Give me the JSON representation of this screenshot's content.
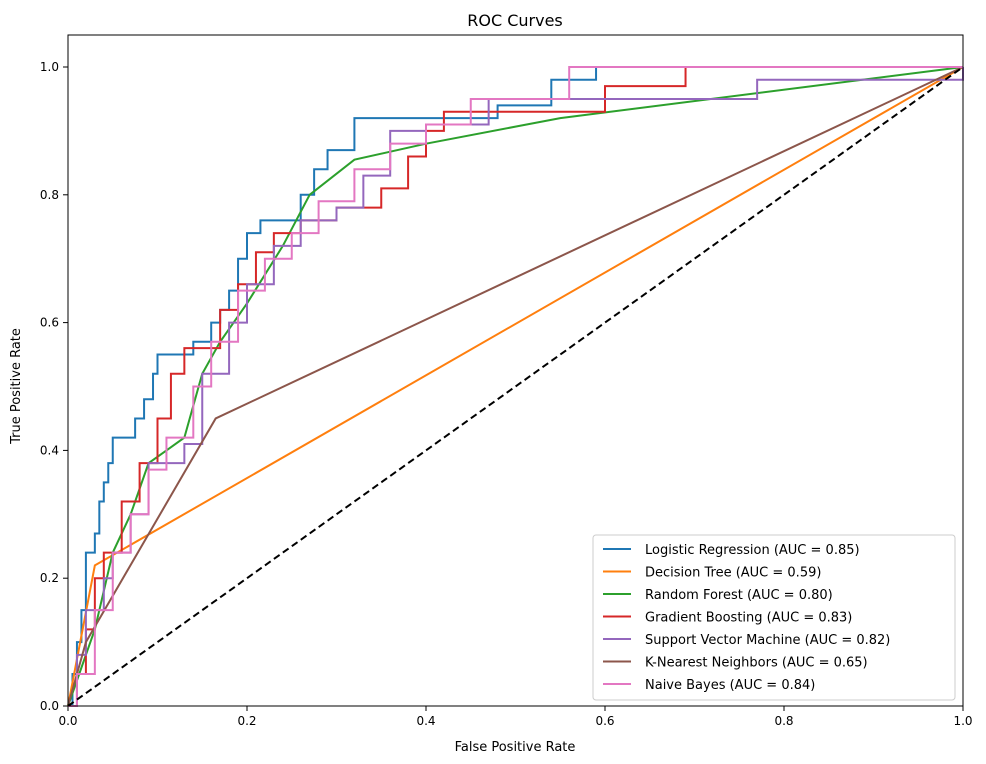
{
  "chart_data": {
    "type": "line",
    "title": "ROC Curves",
    "xlabel": "False Positive Rate",
    "ylabel": "True Positive Rate",
    "xlim": [
      0,
      1
    ],
    "ylim": [
      0,
      1.05
    ],
    "xticks": [
      "0.0",
      "0.2",
      "0.4",
      "0.6",
      "0.8",
      "1.0"
    ],
    "yticks": [
      "0.0",
      "0.2",
      "0.4",
      "0.6",
      "0.8",
      "1.0"
    ],
    "grid": false,
    "legend_position": "bottom-right",
    "series": [
      {
        "name": "Logistic Regression (AUC = 0.85)",
        "color": "#1f77b4",
        "step": true,
        "x": [
          0,
          0.005,
          0.01,
          0.015,
          0.02,
          0.03,
          0.035,
          0.04,
          0.045,
          0.05,
          0.07,
          0.075,
          0.085,
          0.095,
          0.1,
          0.135,
          0.14,
          0.16,
          0.17,
          0.18,
          0.19,
          0.2,
          0.215,
          0.25,
          0.26,
          0.275,
          0.29,
          0.32,
          0.42,
          0.48,
          0.54,
          0.59,
          1
        ],
        "y": [
          0,
          0.05,
          0.1,
          0.15,
          0.24,
          0.27,
          0.32,
          0.35,
          0.38,
          0.42,
          0.42,
          0.45,
          0.48,
          0.52,
          0.55,
          0.55,
          0.57,
          0.6,
          0.62,
          0.65,
          0.7,
          0.74,
          0.76,
          0.76,
          0.8,
          0.84,
          0.87,
          0.92,
          0.92,
          0.94,
          0.98,
          1.0,
          1.0
        ]
      },
      {
        "name": "Decision Tree (AUC = 0.59)",
        "color": "#ff7f0e",
        "step": false,
        "x": [
          0,
          0.03,
          1
        ],
        "y": [
          0,
          0.22,
          1
        ]
      },
      {
        "name": "Random Forest (AUC = 0.80)",
        "color": "#2ca02c",
        "step": false,
        "x": [
          0,
          0.03,
          0.05,
          0.07,
          0.09,
          0.11,
          0.13,
          0.15,
          0.17,
          0.2,
          0.24,
          0.27,
          0.32,
          0.4,
          0.55,
          1
        ],
        "y": [
          0,
          0.12,
          0.24,
          0.3,
          0.38,
          0.4,
          0.42,
          0.52,
          0.57,
          0.63,
          0.72,
          0.8,
          0.855,
          0.88,
          0.92,
          1
        ]
      },
      {
        "name": "Gradient Boosting (AUC = 0.83)",
        "color": "#d62728",
        "step": true,
        "x": [
          0,
          0.01,
          0.02,
          0.03,
          0.04,
          0.06,
          0.08,
          0.1,
          0.115,
          0.13,
          0.15,
          0.17,
          0.19,
          0.21,
          0.23,
          0.26,
          0.3,
          0.35,
          0.38,
          0.4,
          0.42,
          0.6,
          0.69,
          1
        ],
        "y": [
          0,
          0.05,
          0.12,
          0.2,
          0.24,
          0.32,
          0.38,
          0.45,
          0.52,
          0.56,
          0.56,
          0.62,
          0.66,
          0.71,
          0.74,
          0.76,
          0.78,
          0.81,
          0.86,
          0.9,
          0.93,
          0.97,
          1.0,
          1.0
        ]
      },
      {
        "name": "Support Vector Machine (AUC = 0.82)",
        "color": "#9467bd",
        "step": true,
        "x": [
          0,
          0.01,
          0.02,
          0.04,
          0.05,
          0.07,
          0.09,
          0.13,
          0.15,
          0.18,
          0.2,
          0.23,
          0.26,
          0.3,
          0.33,
          0.36,
          0.4,
          0.47,
          0.6,
          0.77,
          0.94,
          1
        ],
        "y": [
          0,
          0.08,
          0.15,
          0.2,
          0.24,
          0.3,
          0.38,
          0.41,
          0.52,
          0.6,
          0.66,
          0.72,
          0.76,
          0.78,
          0.83,
          0.9,
          0.91,
          0.95,
          0.95,
          0.98,
          0.98,
          1
        ]
      },
      {
        "name": "K-Nearest Neighbors (AUC = 0.65)",
        "color": "#8c564b",
        "step": false,
        "x": [
          0,
          0.02,
          0.165,
          1
        ],
        "y": [
          0,
          0.1,
          0.45,
          1
        ]
      },
      {
        "name": "Naive Bayes (AUC = 0.84)",
        "color": "#e377c2",
        "step": true,
        "x": [
          0,
          0.01,
          0.03,
          0.05,
          0.07,
          0.09,
          0.11,
          0.14,
          0.16,
          0.19,
          0.22,
          0.25,
          0.28,
          0.32,
          0.36,
          0.4,
          0.45,
          0.56,
          1
        ],
        "y": [
          0,
          0.05,
          0.15,
          0.24,
          0.3,
          0.37,
          0.42,
          0.5,
          0.57,
          0.65,
          0.7,
          0.74,
          0.79,
          0.84,
          0.88,
          0.91,
          0.95,
          1.0,
          1.0
        ]
      }
    ],
    "reference_line": {
      "x": [
        0,
        1
      ],
      "y": [
        0,
        1
      ],
      "color": "#000000",
      "style": "dashed"
    }
  }
}
